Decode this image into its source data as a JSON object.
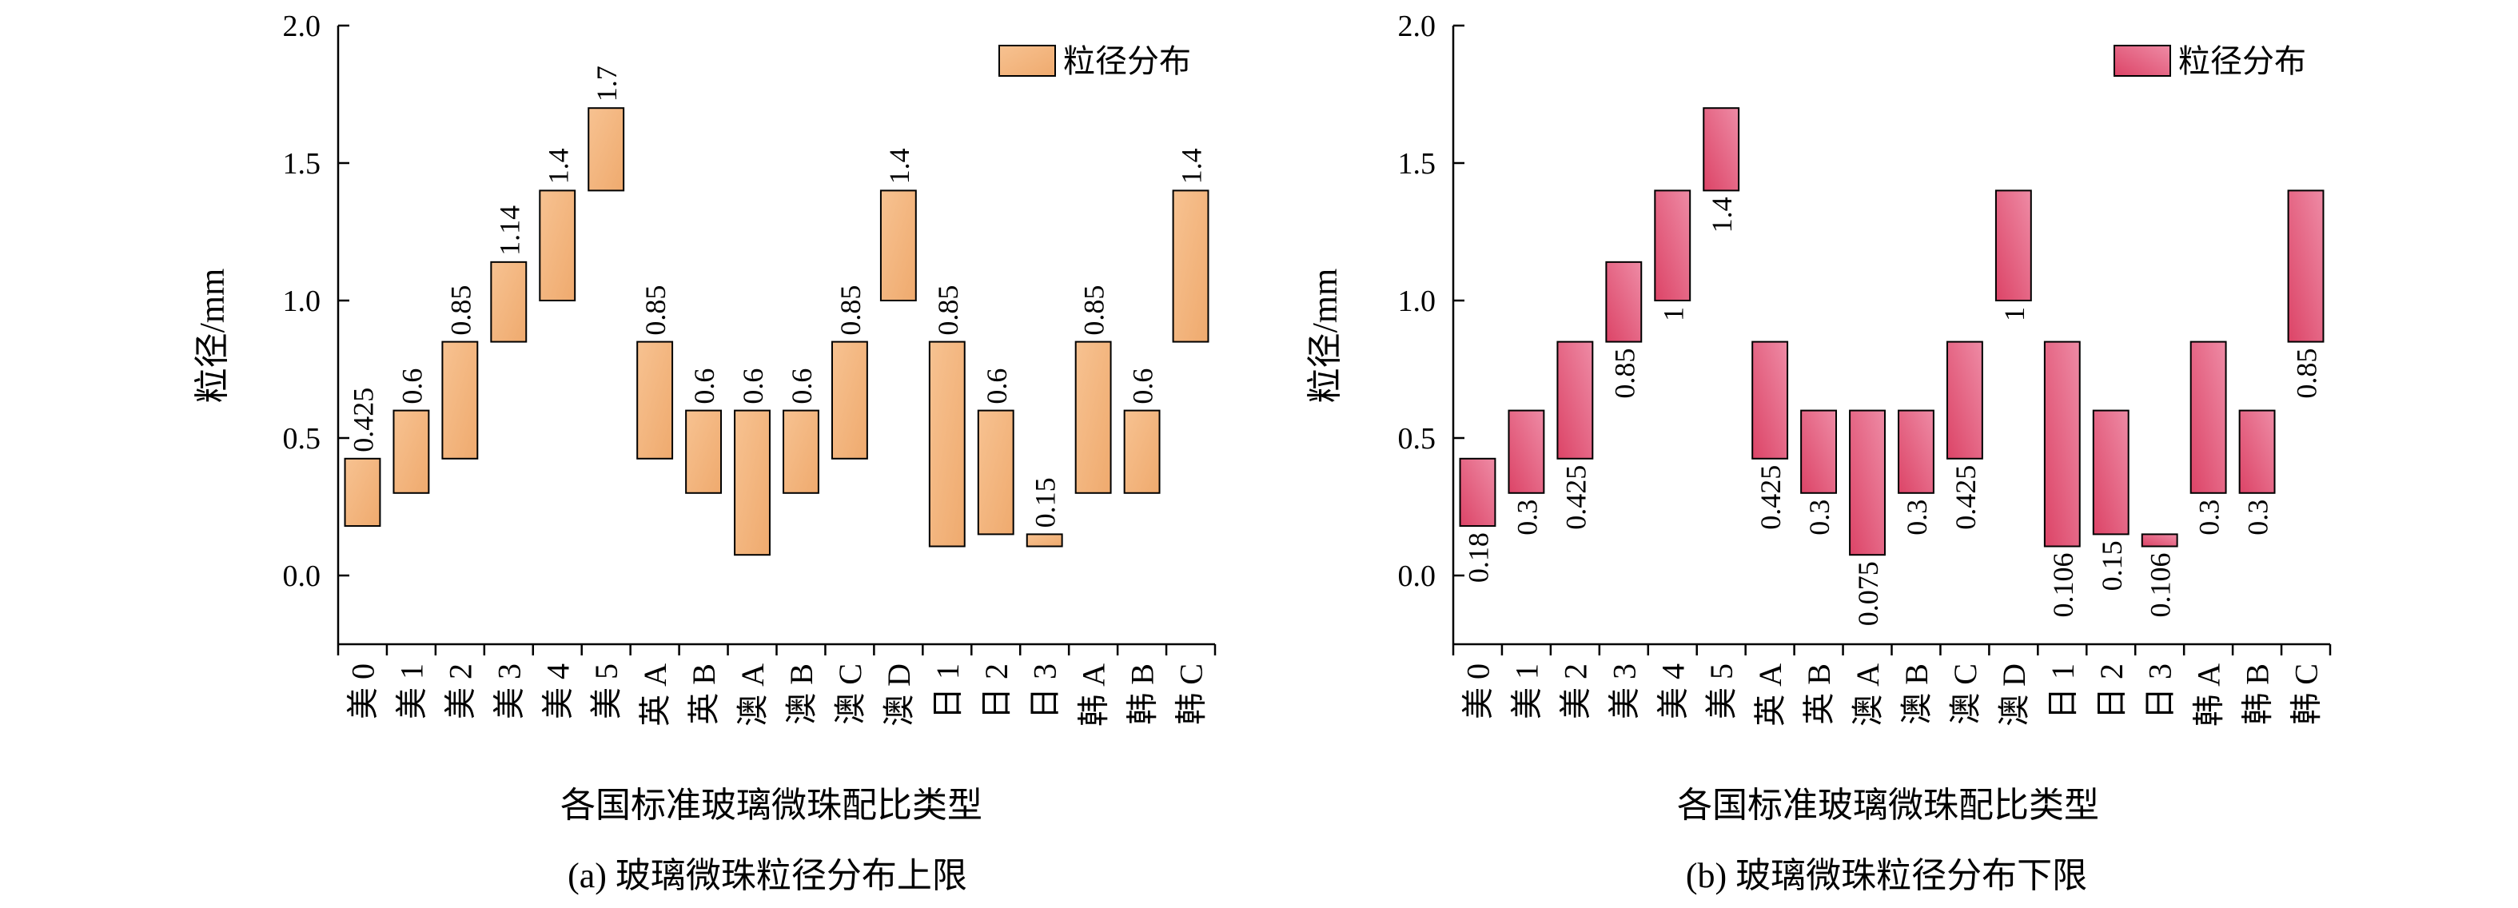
{
  "colors": {
    "orange_light": "#F7C291",
    "orange_dark": "#EFAA6E",
    "pink_light": "#EE8BA5",
    "pink_dark": "#DC4467"
  },
  "chart_data": [
    {
      "type": "bar",
      "subtype": "floating-range",
      "caption": "(a) 玻璃微珠粒径分布上限",
      "xlabel": "各国标准玻璃微珠配比类型",
      "ylabel": "粒径/mm",
      "ylim": [
        -0.25,
        2.0
      ],
      "yticks": [
        "0.0",
        "0.5",
        "1.0",
        "1.5",
        "2.0"
      ],
      "legend": "粒径分布",
      "legend_position": "top-right",
      "categories": [
        "美 0",
        "美 1",
        "美 2",
        "美 3",
        "美 4",
        "美 5",
        "英 A",
        "英 B",
        "澳 A",
        "澳 B",
        "澳 C",
        "澳 D",
        "日 1",
        "日 2",
        "日 3",
        "韩 A",
        "韩 B",
        "韩 C"
      ],
      "low": [
        0.18,
        0.3,
        0.425,
        0.85,
        1.0,
        1.4,
        0.425,
        0.3,
        0.075,
        0.3,
        0.425,
        1.0,
        0.106,
        0.15,
        0.106,
        0.3,
        0.3,
        0.85
      ],
      "high": [
        0.425,
        0.6,
        0.85,
        1.14,
        1.4,
        1.7,
        0.85,
        0.6,
        0.6,
        0.6,
        0.85,
        1.4,
        0.85,
        0.6,
        0.15,
        0.85,
        0.6,
        1.4
      ],
      "data_labels": [
        "0.425",
        "0.6",
        "0.85",
        "1.14",
        "1.4",
        "1.7",
        "0.85",
        "0.6",
        "0.6",
        "0.6",
        "0.85",
        "1.4",
        "0.85",
        "0.6",
        "0.15",
        "0.85",
        "0.6",
        "1.4"
      ],
      "label_at": "high",
      "color_key": "orange"
    },
    {
      "type": "bar",
      "subtype": "floating-range",
      "caption": "(b) 玻璃微珠粒径分布下限",
      "xlabel": "各国标准玻璃微珠配比类型",
      "ylabel": "粒径/mm",
      "ylim": [
        -0.25,
        2.0
      ],
      "yticks": [
        "0.0",
        "0.5",
        "1.0",
        "1.5",
        "2.0"
      ],
      "legend": "粒径分布",
      "legend_position": "top-right",
      "categories": [
        "美 0",
        "美 1",
        "美 2",
        "美 3",
        "美 4",
        "美 5",
        "英 A",
        "英 B",
        "澳 A",
        "澳 B",
        "澳 C",
        "澳 D",
        "日 1",
        "日 2",
        "日 3",
        "韩 A",
        "韩 B",
        "韩 C"
      ],
      "low": [
        0.18,
        0.3,
        0.425,
        0.85,
        1.0,
        1.4,
        0.425,
        0.3,
        0.075,
        0.3,
        0.425,
        1.0,
        0.106,
        0.15,
        0.106,
        0.3,
        0.3,
        0.85
      ],
      "high": [
        0.425,
        0.6,
        0.85,
        1.14,
        1.4,
        1.7,
        0.85,
        0.6,
        0.6,
        0.6,
        0.85,
        1.4,
        0.85,
        0.6,
        0.15,
        0.85,
        0.6,
        1.4
      ],
      "data_labels": [
        "0.18",
        "0.3",
        "0.425",
        "0.85",
        "1",
        "1.4",
        "0.425",
        "0.3",
        "0.075",
        "0.3",
        "0.425",
        "1",
        "0.106",
        "0.15",
        "0.106",
        "0.3",
        "0.3",
        "0.85"
      ],
      "label_at": "low",
      "color_key": "pink"
    }
  ]
}
